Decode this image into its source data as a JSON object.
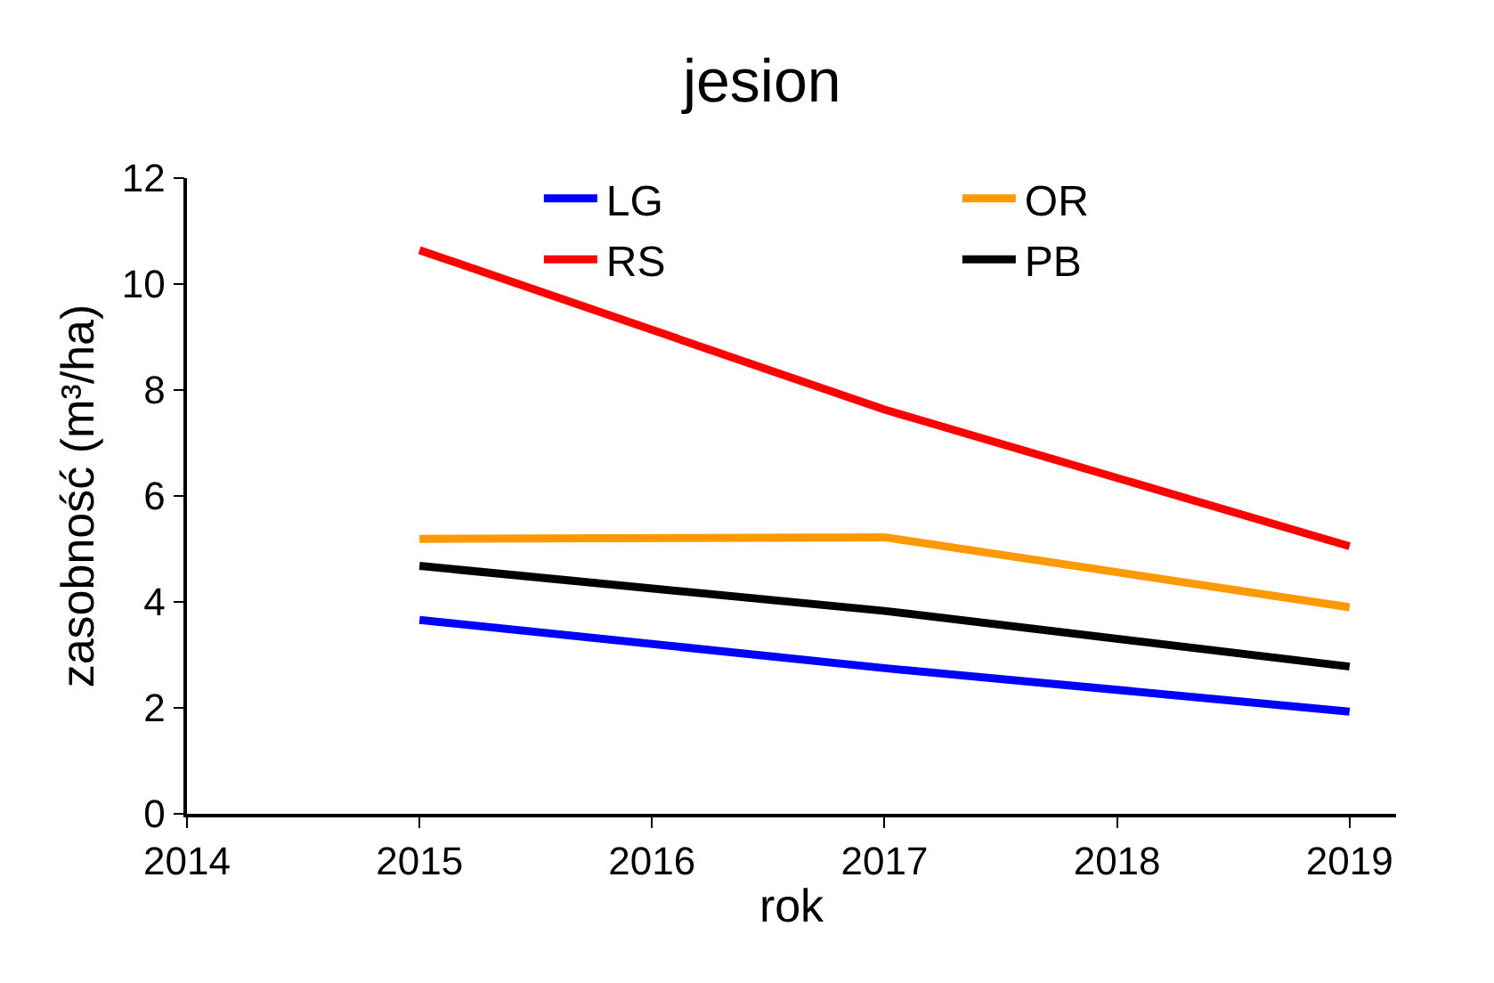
{
  "chart_data": {
    "type": "line",
    "title": "jesion",
    "xlabel": "rok",
    "ylabel": "zasobność (m³/ha)",
    "x": [
      2015,
      2017,
      2019
    ],
    "series": [
      {
        "name": "LG",
        "color": "#0000ff",
        "values": [
          3.66,
          2.75,
          1.93
        ]
      },
      {
        "name": "OR",
        "color": "#ff9900",
        "values": [
          5.19,
          5.22,
          3.9
        ]
      },
      {
        "name": "RS",
        "color": "#ff0000",
        "values": [
          10.64,
          7.63,
          5.05
        ]
      },
      {
        "name": "PB",
        "color": "#000000",
        "values": [
          4.68,
          3.83,
          2.78
        ]
      }
    ],
    "xlim": [
      2014,
      2019.2
    ],
    "xticks": [
      2014,
      2015,
      2016,
      2017,
      2018,
      2019
    ],
    "ylim": [
      0,
      12
    ],
    "yticks": [
      0,
      2,
      4,
      6,
      8,
      10,
      12
    ],
    "legend": "top right",
    "marker": "none",
    "line_style": "solid"
  }
}
